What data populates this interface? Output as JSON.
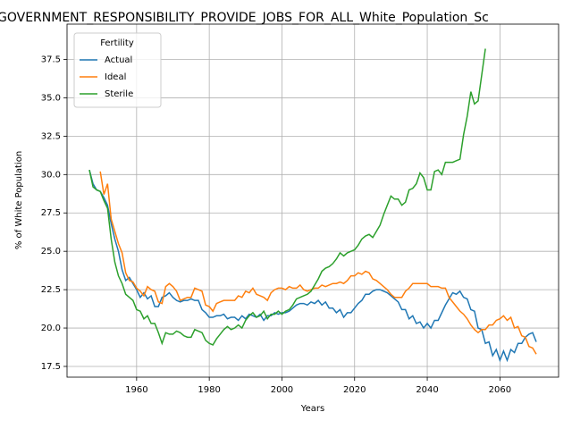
{
  "chart_data": {
    "type": "line",
    "title": "GOVERNMENT_RESPONSIBILITY_PROVIDE_JOBS_FOR_ALL_White_Population_Sc",
    "xlabel": "Years",
    "ylabel": "% of White Population",
    "legend_title": "Fertility",
    "legend": "upper left",
    "grid": true,
    "x": [
      1947,
      1948,
      1949,
      1950,
      1951,
      1952,
      1953,
      1954,
      1955,
      1956,
      1957,
      1958,
      1959,
      1960,
      1961,
      1962,
      1963,
      1964,
      1965,
      1966,
      1967,
      1968,
      1969,
      1970,
      1971,
      1972,
      1973,
      1974,
      1975,
      1976,
      1977,
      1978,
      1979,
      1980,
      1981,
      1982,
      1983,
      1984,
      1985,
      1986,
      1987,
      1988,
      1989,
      1990,
      1991,
      1992,
      1993,
      1994,
      1995,
      1996,
      1997,
      1998,
      1999,
      2000,
      2001,
      2002,
      2003,
      2004,
      2005,
      2006,
      2007,
      2008,
      2009,
      2010,
      2011,
      2012,
      2013,
      2014,
      2015,
      2016,
      2017,
      2018,
      2019,
      2020,
      2021,
      2022,
      2023,
      2024,
      2025,
      2026,
      2027,
      2028,
      2029,
      2030,
      2031,
      2032,
      2033,
      2034,
      2035,
      2036,
      2037,
      2038,
      2039,
      2040,
      2041,
      2042,
      2043,
      2044,
      2045,
      2046,
      2047,
      2048,
      2049,
      2050,
      2051,
      2052,
      2053,
      2054,
      2055,
      2056,
      2057,
      2058,
      2059,
      2060,
      2061,
      2062,
      2063,
      2064,
      2065,
      2066,
      2067,
      2068,
      2069,
      2070
    ],
    "series": [
      {
        "name": "Actual",
        "color": "#1f77b4",
        "values": [
          30.3,
          29.4,
          29.0,
          28.9,
          28.5,
          28.0,
          26.8,
          25.8,
          25.0,
          23.8,
          23.1,
          23.3,
          22.9,
          22.5,
          22.0,
          22.3,
          21.9,
          22.1,
          21.4,
          21.4,
          22.0,
          22.1,
          22.3,
          22.0,
          21.8,
          21.7,
          21.8,
          21.8,
          21.9,
          21.8,
          21.8,
          21.2,
          21.0,
          20.7,
          20.7,
          20.8,
          20.8,
          20.9,
          20.6,
          20.7,
          20.7,
          20.5,
          20.8,
          20.6,
          20.9,
          20.8,
          20.7,
          20.9,
          20.5,
          20.8,
          20.8,
          21.0,
          20.9,
          21.0,
          21.0,
          21.1,
          21.3,
          21.5,
          21.6,
          21.6,
          21.5,
          21.7,
          21.6,
          21.8,
          21.5,
          21.7,
          21.3,
          21.3,
          21.0,
          21.2,
          20.7,
          21.0,
          21.0,
          21.3,
          21.6,
          21.8,
          22.2,
          22.2,
          22.4,
          22.5,
          22.5,
          22.4,
          22.3,
          22.1,
          21.9,
          21.7,
          21.2,
          21.2,
          20.6,
          20.8,
          20.3,
          20.4,
          20.0,
          20.3,
          20.0,
          20.5,
          20.5,
          21.0,
          21.5,
          21.9,
          22.3,
          22.2,
          22.4,
          22.0,
          21.9,
          21.2,
          21.1,
          20.0,
          19.9,
          19.0,
          19.1,
          18.2,
          18.6,
          17.9,
          18.5,
          17.9,
          18.6,
          18.4,
          19.0,
          19.0,
          19.4,
          19.6,
          19.7,
          19.1
        ]
      },
      {
        "name": "Ideal",
        "color": "#ff7f0e",
        "values": [
          null,
          null,
          null,
          30.2,
          28.7,
          29.4,
          27.1,
          26.3,
          25.5,
          24.9,
          23.6,
          23.1,
          23.0,
          22.6,
          22.4,
          22.1,
          22.7,
          22.5,
          22.4,
          21.7,
          21.6,
          22.7,
          22.9,
          22.7,
          22.4,
          21.8,
          21.9,
          22.0,
          22.0,
          22.6,
          22.5,
          22.4,
          21.5,
          21.4,
          21.1,
          21.6,
          21.7,
          21.8,
          21.8,
          21.8,
          21.8,
          22.1,
          22.0,
          22.4,
          22.3,
          22.6,
          22.2,
          22.1,
          22.0,
          21.8,
          22.3,
          22.5,
          22.6,
          22.6,
          22.5,
          22.7,
          22.6,
          22.6,
          22.8,
          22.5,
          22.4,
          22.5,
          22.6,
          22.6,
          22.8,
          22.7,
          22.8,
          22.9,
          22.9,
          23.0,
          22.9,
          23.1,
          23.4,
          23.4,
          23.6,
          23.5,
          23.7,
          23.6,
          23.2,
          23.1,
          22.9,
          22.7,
          22.5,
          22.2,
          22.0,
          22.0,
          22.0,
          22.4,
          22.6,
          22.9,
          22.9,
          22.9,
          22.9,
          22.9,
          22.7,
          22.7,
          22.7,
          22.6,
          22.6,
          22.0,
          21.7,
          21.4,
          21.1,
          20.9,
          20.6,
          20.2,
          19.9,
          19.7,
          19.9,
          19.9,
          20.2,
          20.2,
          20.5,
          20.6,
          20.8,
          20.5,
          20.7,
          20.0,
          20.1,
          19.5,
          19.4,
          18.8,
          18.7,
          18.3
        ]
      },
      {
        "name": "Sterile",
        "color": "#2ca02c",
        "values": [
          30.3,
          29.2,
          29.0,
          28.9,
          28.3,
          27.8,
          25.8,
          24.3,
          23.4,
          22.9,
          22.2,
          22.0,
          21.8,
          21.2,
          21.1,
          20.6,
          20.8,
          20.3,
          20.3,
          19.7,
          19.0,
          19.7,
          19.6,
          19.6,
          19.8,
          19.7,
          19.5,
          19.4,
          19.4,
          19.9,
          19.8,
          19.7,
          19.2,
          19.0,
          18.9,
          19.3,
          19.6,
          19.9,
          20.1,
          19.9,
          20.0,
          20.2,
          20.0,
          20.5,
          20.8,
          21.0,
          20.7,
          20.8,
          21.1,
          20.6,
          20.9,
          20.9,
          21.1,
          20.9,
          21.1,
          21.2,
          21.5,
          21.9,
          22.0,
          22.1,
          22.2,
          22.4,
          22.8,
          23.2,
          23.7,
          23.9,
          24.0,
          24.2,
          24.5,
          24.9,
          24.7,
          24.9,
          25.0,
          25.1,
          25.4,
          25.8,
          26.0,
          26.1,
          25.9,
          26.3,
          26.7,
          27.4,
          28.0,
          28.6,
          28.4,
          28.4,
          28.0,
          28.2,
          29.0,
          29.1,
          29.4,
          30.1,
          29.8,
          29.0,
          29.0,
          30.2,
          30.3,
          30.0,
          30.8,
          30.8,
          30.8,
          30.9,
          31.0,
          32.6,
          33.8,
          35.4,
          34.6,
          34.8,
          36.5,
          38.2,
          null,
          null,
          null,
          null,
          null,
          null,
          null,
          null,
          null,
          null,
          null,
          null,
          null,
          null
        ]
      }
    ],
    "xlim": [
      1940.85,
      2076.15
    ],
    "xticks": [
      1960,
      1980,
      2000,
      2020,
      2040,
      2060
    ],
    "ylim": [
      16.8,
      39.8
    ],
    "yticks": [
      17.5,
      {
        "value": 20,
        "label": "20.0"
      },
      22.5,
      {
        "value": 25,
        "label": "25.0"
      },
      27.5,
      {
        "value": 30,
        "label": "30.0"
      },
      32.5,
      {
        "value": 35,
        "label": "35.0"
      },
      37.5
    ]
  }
}
